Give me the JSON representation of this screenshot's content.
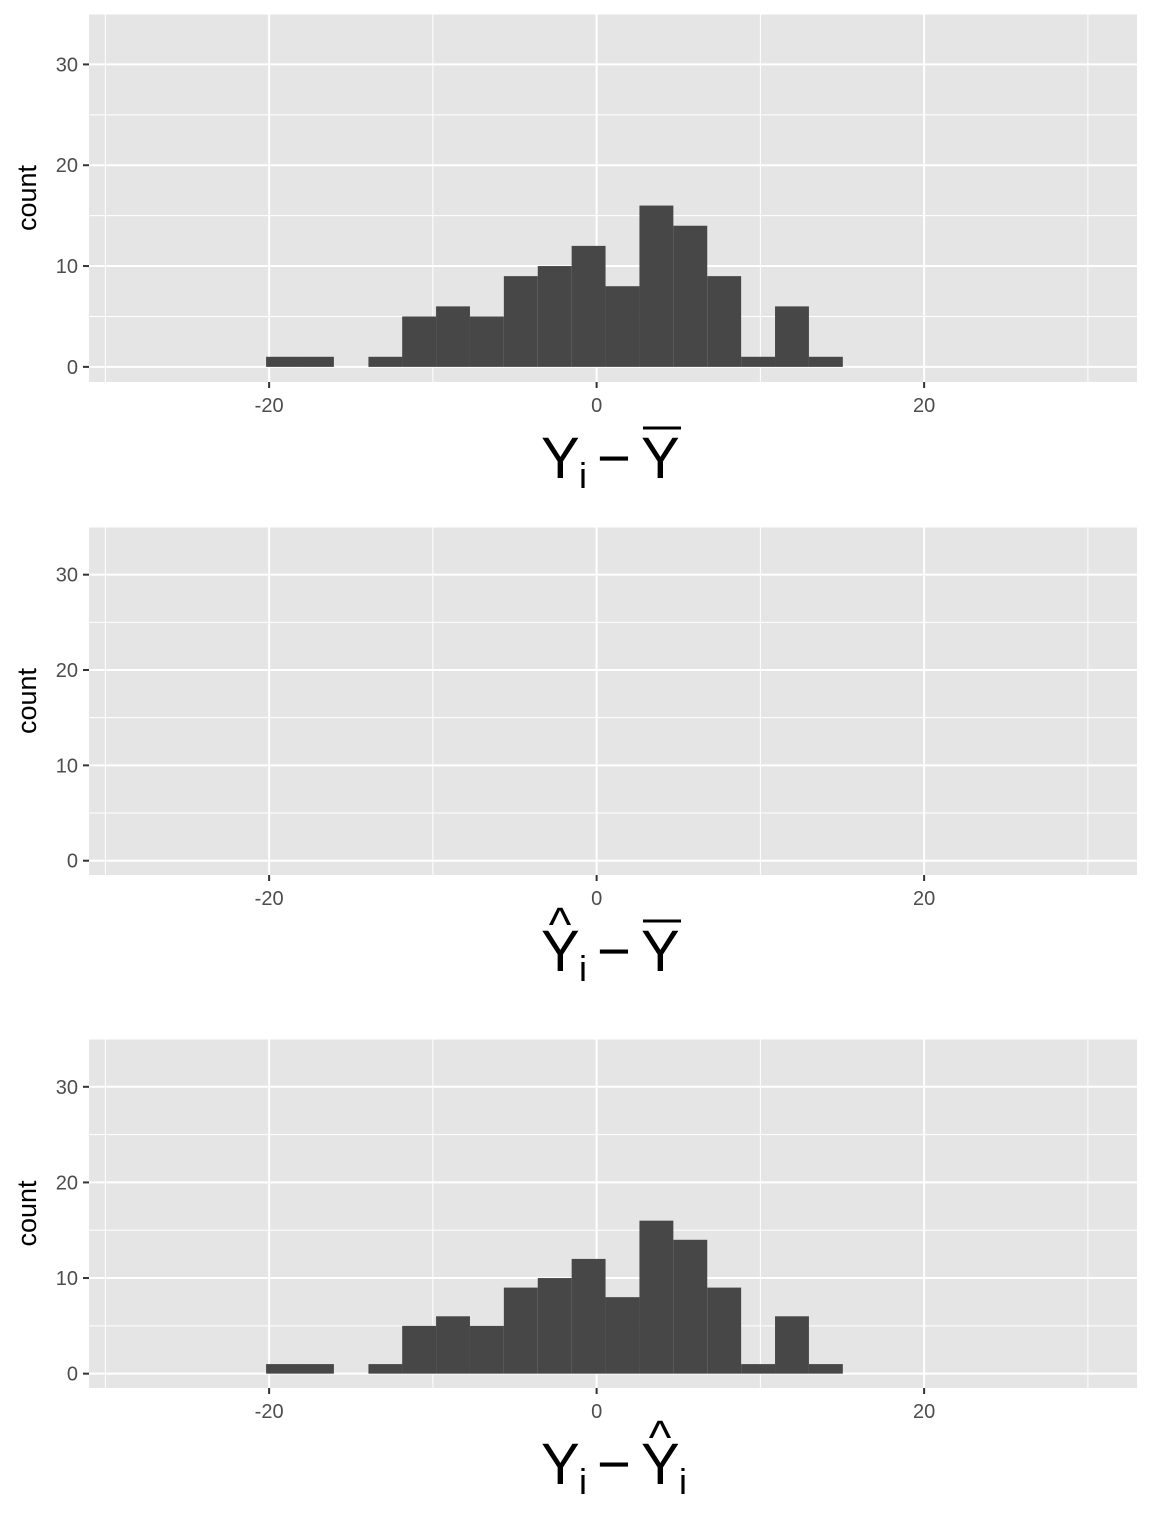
{
  "chart_data": [
    {
      "type": "bar",
      "xlabel_parts": {
        "base": "Y",
        "sub": "i",
        "minus": "−",
        "rhs": "Y",
        "rhs_sub": "",
        "hat_lhs": false,
        "hat_rhs": false,
        "bar_rhs": true
      },
      "ylabel": "count",
      "xlim": [
        -31,
        33
      ],
      "ylim": [
        -1.5,
        35
      ],
      "x_ticks": [
        -20,
        0,
        20
      ],
      "x_tick_labels": [
        "-20",
        "0",
        "20"
      ],
      "x_minor_ticks": [
        -30,
        -10,
        10,
        30
      ],
      "y_ticks": [
        0,
        10,
        20,
        30
      ],
      "y_tick_labels": [
        "0",
        "10",
        "20",
        "30"
      ],
      "y_minor_ticks": [
        5,
        15,
        25,
        35
      ],
      "bin_width": 2.07,
      "bar_color": "#474747",
      "panel_bg": "#e5e5e5",
      "grid_color": "#ffffff",
      "bins": [
        {
          "x": -19.15,
          "count": 1
        },
        {
          "x": -17.08,
          "count": 1
        },
        {
          "x": -12.9,
          "count": 1
        },
        {
          "x": -10.84,
          "count": 5
        },
        {
          "x": -8.77,
          "count": 6
        },
        {
          "x": -6.7,
          "count": 5
        },
        {
          "x": -4.63,
          "count": 9
        },
        {
          "x": -2.56,
          "count": 10
        },
        {
          "x": -0.49,
          "count": 12
        },
        {
          "x": 1.58,
          "count": 8
        },
        {
          "x": 3.65,
          "count": 16
        },
        {
          "x": 5.72,
          "count": 14
        },
        {
          "x": 7.79,
          "count": 9
        },
        {
          "x": 9.86,
          "count": 1
        },
        {
          "x": 11.93,
          "count": 6
        },
        {
          "x": 14.0,
          "count": 1
        }
      ]
    },
    {
      "type": "bar",
      "xlabel_parts": {
        "base": "Y",
        "sub": "i",
        "minus": "−",
        "rhs": "Y",
        "rhs_sub": "",
        "hat_lhs": true,
        "hat_rhs": false,
        "bar_rhs": true
      },
      "ylabel": "count",
      "xlim": [
        -31,
        33
      ],
      "ylim": [
        -1.5,
        35
      ],
      "x_ticks": [
        -20,
        0,
        20
      ],
      "x_tick_labels": [
        "-20",
        "0",
        "20"
      ],
      "x_minor_ticks": [
        -30,
        -10,
        10,
        30
      ],
      "y_ticks": [
        0,
        10,
        20,
        30
      ],
      "y_tick_labels": [
        "0",
        "10",
        "20",
        "30"
      ],
      "y_minor_ticks": [
        5,
        15,
        25,
        35
      ],
      "bin_width": 2.07,
      "bar_color": "#474747",
      "panel_bg": "#e5e5e5",
      "grid_color": "#ffffff",
      "bins": []
    },
    {
      "type": "bar",
      "xlabel_parts": {
        "base": "Y",
        "sub": "i",
        "minus": "−",
        "rhs": "Y",
        "rhs_sub": "i",
        "hat_lhs": false,
        "hat_rhs": true,
        "bar_rhs": false
      },
      "ylabel": "count",
      "xlim": [
        -31,
        33
      ],
      "ylim": [
        -1.5,
        35
      ],
      "x_ticks": [
        -20,
        0,
        20
      ],
      "x_tick_labels": [
        "-20",
        "0",
        "20"
      ],
      "x_minor_ticks": [
        -30,
        -10,
        10,
        30
      ],
      "y_ticks": [
        0,
        10,
        20,
        30
      ],
      "y_tick_labels": [
        "0",
        "10",
        "20",
        "30"
      ],
      "y_minor_ticks": [
        5,
        15,
        25,
        35
      ],
      "bin_width": 2.07,
      "bar_color": "#474747",
      "panel_bg": "#e5e5e5",
      "grid_color": "#ffffff",
      "bins": [
        {
          "x": -19.15,
          "count": 1
        },
        {
          "x": -17.08,
          "count": 1
        },
        {
          "x": -12.9,
          "count": 1
        },
        {
          "x": -10.84,
          "count": 5
        },
        {
          "x": -8.77,
          "count": 6
        },
        {
          "x": -6.7,
          "count": 5
        },
        {
          "x": -4.63,
          "count": 9
        },
        {
          "x": -2.56,
          "count": 10
        },
        {
          "x": -0.49,
          "count": 12
        },
        {
          "x": 1.58,
          "count": 8
        },
        {
          "x": 3.65,
          "count": 16
        },
        {
          "x": 5.72,
          "count": 14
        },
        {
          "x": 7.79,
          "count": 9
        },
        {
          "x": 9.86,
          "count": 1
        },
        {
          "x": 11.93,
          "count": 6
        },
        {
          "x": 14.0,
          "count": 1
        }
      ]
    }
  ]
}
